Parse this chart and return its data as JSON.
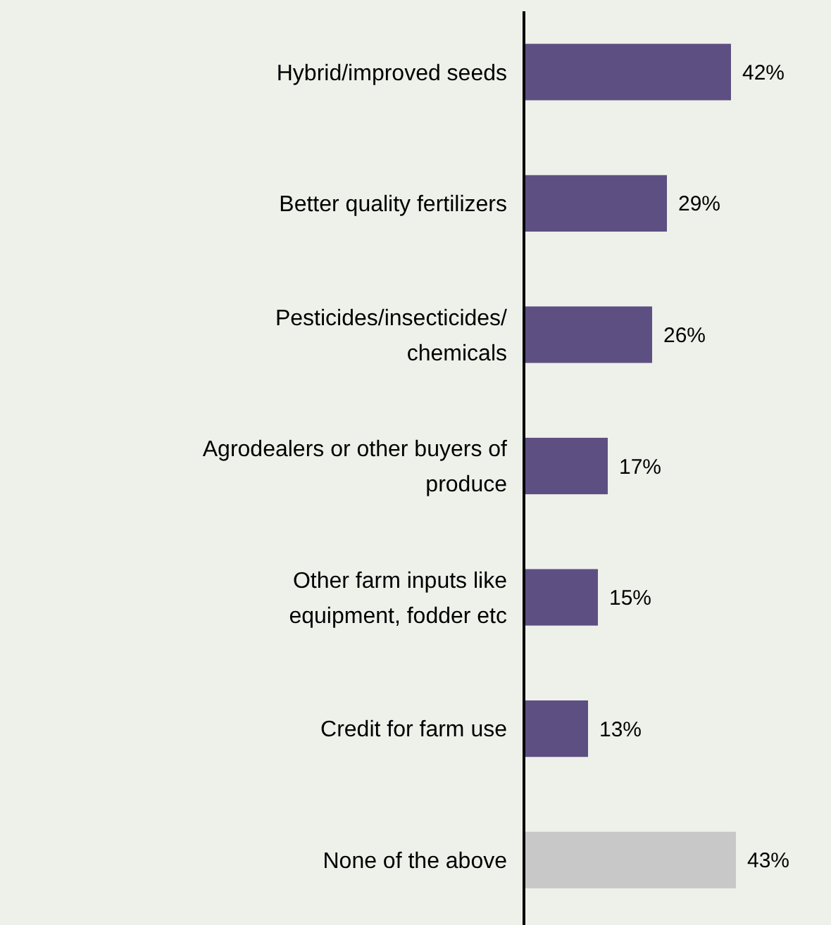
{
  "chart_data": {
    "type": "bar",
    "orientation": "horizontal",
    "categories": [
      "Hybrid/improved seeds",
      "Better quality fertilizers",
      "Pesticides/insecticides/\nchemicals",
      "Agrodealers or other buyers of\nproduce",
      "Other farm inputs like\nequipment, fodder etc",
      "Credit for farm use",
      "None of the above"
    ],
    "values": [
      42,
      29,
      26,
      17,
      15,
      13,
      43
    ],
    "colors": [
      "#5e4f82",
      "#5e4f82",
      "#5e4f82",
      "#5e4f82",
      "#5e4f82",
      "#5e4f82",
      "#c8c8c8"
    ],
    "value_labels": [
      "42%",
      "29%",
      "26%",
      "17%",
      "15%",
      "13%",
      "43%"
    ],
    "tick_labels": "y"
  }
}
